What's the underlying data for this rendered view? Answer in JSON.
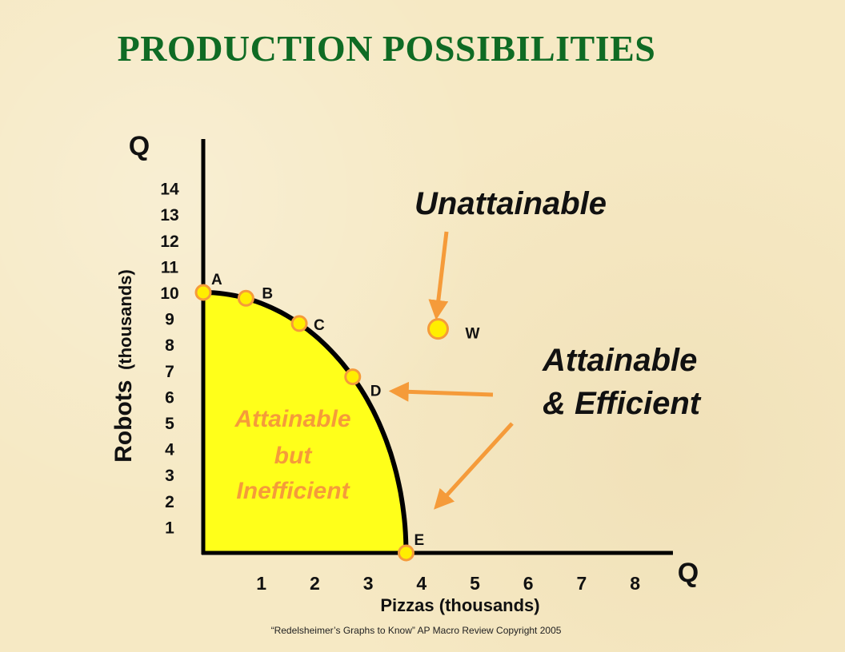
{
  "slide": {
    "title": "PRODUCTION POSSIBILITIES",
    "footer": "“Redelsheimer’s  Graphs to Know”  AP Macro Review Copyright 2005"
  },
  "colors": {
    "background": "#f6e9c4",
    "title": "#0f6b24",
    "fill": "#ffff1a",
    "curve": "#000000",
    "point": "#ffee00",
    "point_stroke": "#f59b3a",
    "arrow": "#f59b3a",
    "inefficient_text": "#f59b3a"
  },
  "chart_data": {
    "type": "line",
    "title": "PRODUCTION POSSIBILITIES",
    "xlabel": "Pizzas (thousands)",
    "ylabel_bold": "Robots",
    "ylabel_rest": "(thousands)",
    "x_axis_letter": "Q",
    "y_axis_letter": "Q",
    "x_ticks": [
      1,
      2,
      3,
      4,
      5,
      6,
      7,
      8
    ],
    "y_ticks": [
      14,
      13,
      12,
      11,
      10,
      9,
      8,
      7,
      6,
      5,
      4,
      3,
      2,
      1
    ],
    "xlim": [
      0,
      8.8
    ],
    "ylim": [
      0,
      14
    ],
    "grid": false,
    "points": [
      {
        "label": "A",
        "x": 0,
        "y": 10
      },
      {
        "label": "B",
        "x": 0.8,
        "y": 9.7
      },
      {
        "label": "C",
        "x": 1.8,
        "y": 8.8
      },
      {
        "label": "D",
        "x": 2.8,
        "y": 6.8
      },
      {
        "label": "E",
        "x": 3.8,
        "y": 0
      }
    ],
    "extra_point": {
      "label": "W",
      "x": 4.4,
      "y": 8.6
    },
    "annotations": {
      "unattainable": "Unattainable",
      "efficient_line1": "Attainable",
      "efficient_line2": "& Efficient",
      "inefficient_line1": "Attainable",
      "inefficient_line2": "but",
      "inefficient_line3": "Inefficient"
    }
  }
}
